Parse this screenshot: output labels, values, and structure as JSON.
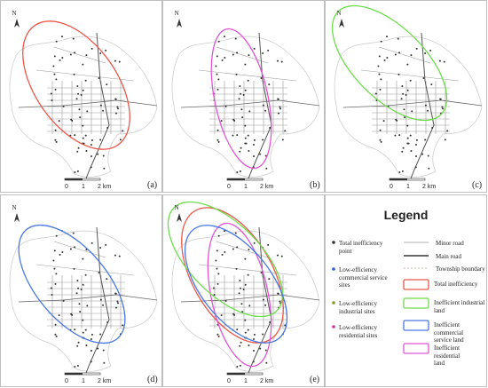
{
  "panels": [
    {
      "label": "(a)",
      "ellipse_color": "#e8584a"
    },
    {
      "label": "(b)",
      "ellipse_color": "#e055d6"
    },
    {
      "label": "(c)",
      "ellipse_color": "#6edc4c"
    },
    {
      "label": "(d)",
      "ellipse_color": "#4a78e0"
    },
    {
      "label": "(e)",
      "ellipse_color": "mixed"
    }
  ],
  "north_label": "N",
  "scale": {
    "zero": "0",
    "one": "1",
    "two": "2 km"
  },
  "legend": {
    "title": "Legend",
    "points": [
      {
        "label_lines": [
          "Total inefficiency",
          "point"
        ],
        "color": "#333333"
      },
      {
        "label_lines": [
          "Low-efficiency",
          "commercial service",
          "sites"
        ],
        "color": "#3a5fcd"
      },
      {
        "label_lines": [
          "Low-efficiency",
          "industrial sites"
        ],
        "color": "#8a9a2a"
      },
      {
        "label_lines": [
          "Low-efficiency",
          "residential sites"
        ],
        "color": "#c0399a"
      }
    ],
    "lines": [
      {
        "label": "Minor road"
      },
      {
        "label": "Main road"
      },
      {
        "label": "Township boundary"
      }
    ],
    "ellipses": [
      {
        "label_lines": [
          "Total inefficiency"
        ],
        "color": "#e8584a"
      },
      {
        "label_lines": [
          "Inefficient industrial",
          "land"
        ],
        "color": "#6edc4c"
      },
      {
        "label_lines": [
          "Inefficient commercial",
          "service land"
        ],
        "color": "#4a78e0"
      },
      {
        "label_lines": [
          "Inefficient residential",
          "land"
        ],
        "color": "#e055d6"
      }
    ]
  }
}
